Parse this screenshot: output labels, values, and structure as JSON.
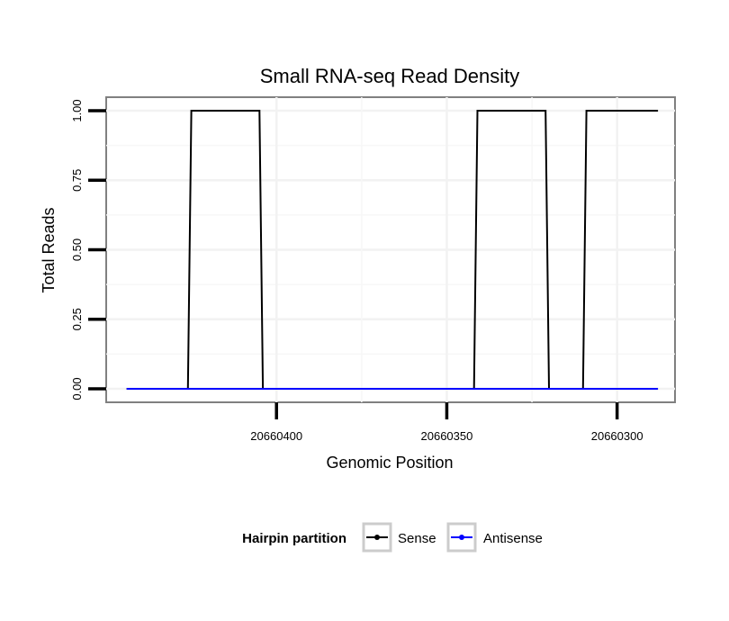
{
  "chart_data": {
    "type": "line",
    "title": "Small RNA-seq Read Density",
    "xlabel": "Genomic Position",
    "ylabel": "Total Reads",
    "x_reversed": true,
    "xlim": [
      20660450,
      20660283
    ],
    "ylim": [
      0.0,
      1.05
    ],
    "grid": true,
    "x_ticks": [
      20660400,
      20660350,
      20660300
    ],
    "x_tick_labels": [
      "20660400",
      "20660350",
      "20660300"
    ],
    "y_ticks": [
      0.0,
      0.25,
      0.5,
      0.75,
      1.0
    ],
    "y_tick_labels": [
      "0.00",
      "0.25",
      "0.50",
      "0.75",
      "1.00"
    ],
    "legend": {
      "position": "bottom",
      "title": "Hairpin partition",
      "entries": [
        {
          "label": "Sense",
          "color": "#000000"
        },
        {
          "label": "Antisense",
          "color": "#0000ff"
        }
      ]
    },
    "series": [
      {
        "name": "Sense",
        "color": "#000000",
        "x": [
          20660444,
          20660426,
          20660425,
          20660405,
          20660404,
          20660342,
          20660341,
          20660321,
          20660320,
          20660310,
          20660309,
          20660288
        ],
        "y": [
          0,
          0,
          1,
          1,
          0,
          0,
          1,
          1,
          0,
          0,
          1,
          1
        ]
      },
      {
        "name": "Antisense",
        "color": "#0000ff",
        "x": [
          20660444,
          20660288
        ],
        "y": [
          0,
          0
        ]
      }
    ]
  }
}
